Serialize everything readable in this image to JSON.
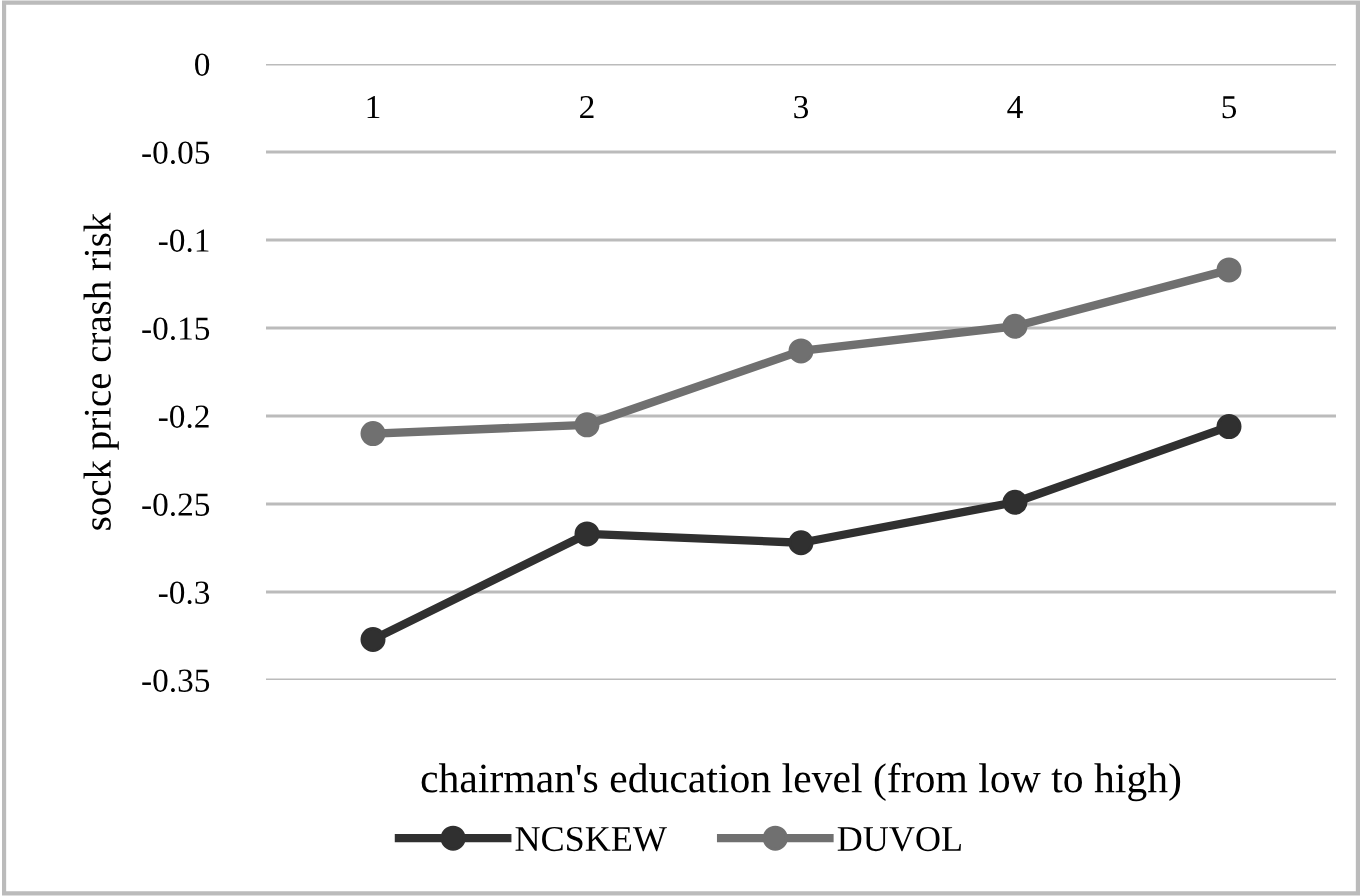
{
  "chart_data": {
    "type": "line",
    "xlabel": "chairman's education level (from low to high)",
    "ylabel": "sock price crash risk",
    "categories": [
      "1",
      "2",
      "3",
      "4",
      "5"
    ],
    "series": [
      {
        "name": "NCSKEW",
        "color": "#303030",
        "values": [
          -0.327,
          -0.267,
          -0.272,
          -0.249,
          -0.206
        ]
      },
      {
        "name": "DUVOL",
        "color": "#707070",
        "values": [
          -0.21,
          -0.205,
          -0.163,
          -0.149,
          -0.117
        ]
      }
    ],
    "ylim": [
      -0.35,
      0
    ],
    "yticks": [
      {
        "value": 0,
        "label": "0"
      },
      {
        "value": -0.05,
        "label": "-0.05"
      },
      {
        "value": -0.1,
        "label": "-0.1"
      },
      {
        "value": -0.15,
        "label": "-0.15"
      },
      {
        "value": -0.2,
        "label": "-0.2"
      },
      {
        "value": -0.25,
        "label": "-0.25"
      },
      {
        "value": -0.3,
        "label": "-0.3"
      },
      {
        "value": -0.35,
        "label": "-0.35"
      }
    ],
    "grid": "y",
    "legend": "bottom",
    "marker": "circle",
    "line_style": "solid"
  }
}
